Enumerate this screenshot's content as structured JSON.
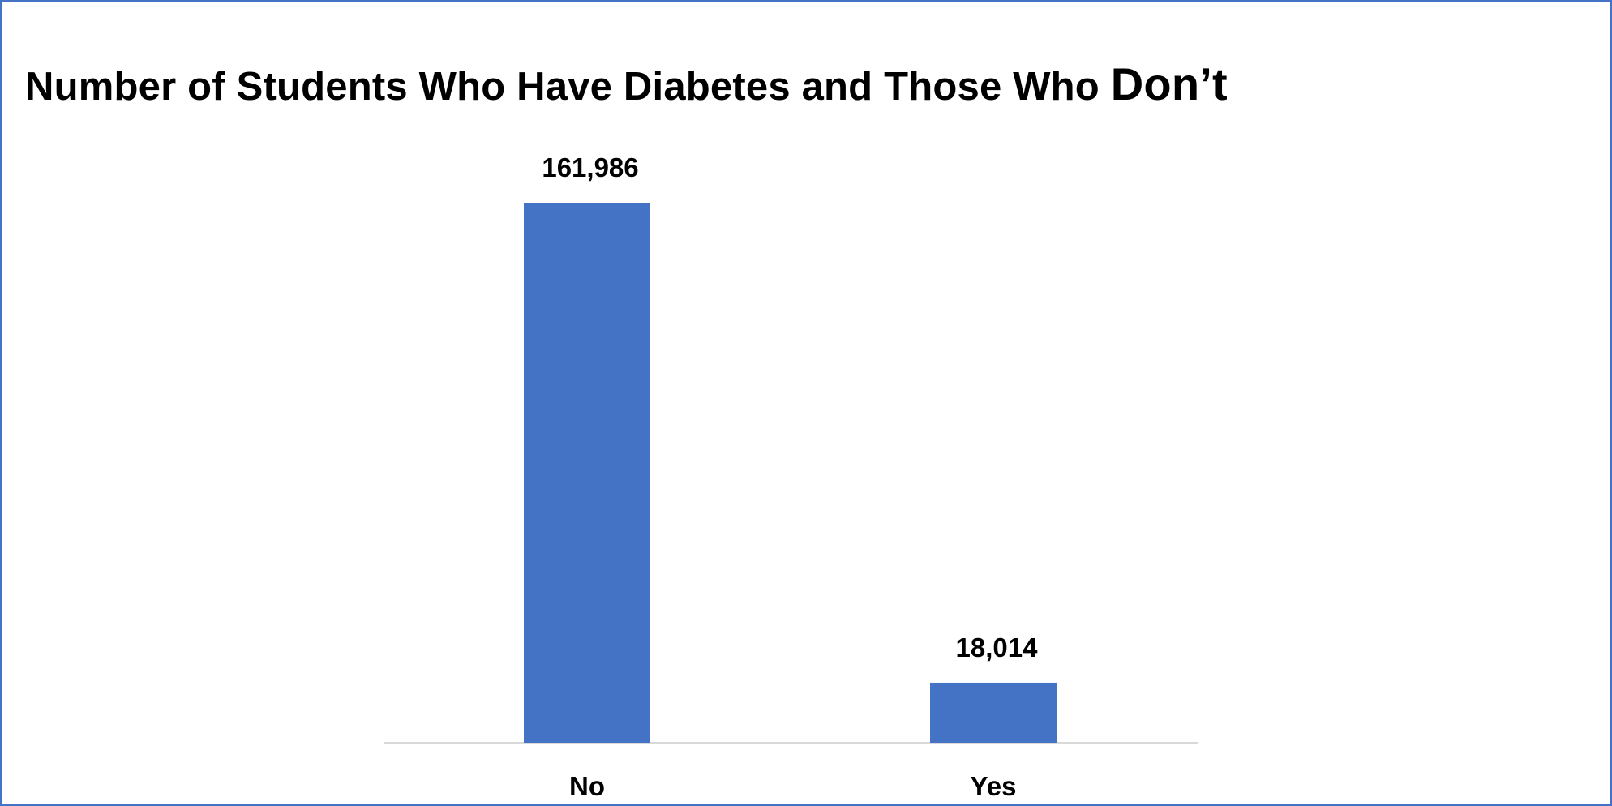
{
  "chart_data": {
    "type": "bar",
    "title": "Number of Students Who Have Diabetes and Those Who",
    "title_tail": "Don’t",
    "categories": [
      "No",
      "Yes"
    ],
    "values": [
      161986,
      18014
    ],
    "value_labels": [
      "161,986",
      "18,014"
    ],
    "xlabel": "",
    "ylabel": "",
    "ylim": [
      0,
      180000
    ],
    "grid": false,
    "legend": "none",
    "colors": {
      "bar": "#4472C4",
      "frame": "#4472C4",
      "axis": "#D9D9D9"
    }
  }
}
